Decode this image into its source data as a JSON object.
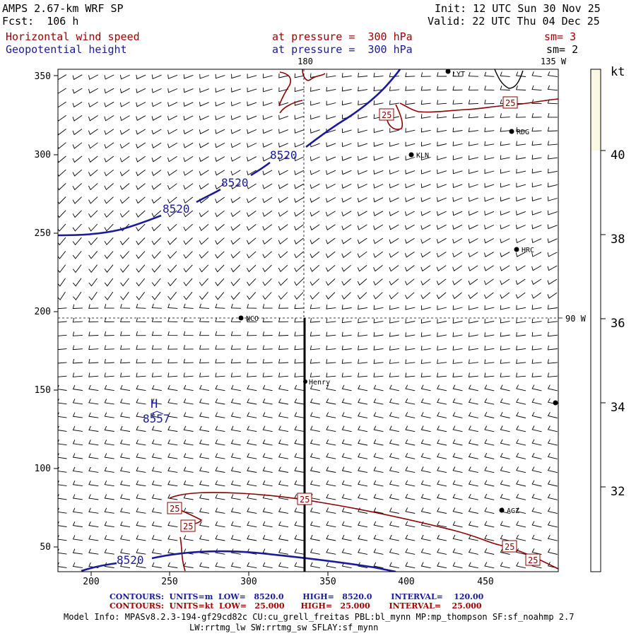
{
  "header": {
    "model_title": "AMPS 2.67-km WRF SP",
    "forecast": "Fcst:  106 h",
    "init": "Init: 12 UTC Sun 30 Nov 25",
    "valid": "Valid: 22 UTC Thu 04 Dec 25",
    "field1": "Horizontal wind speed",
    "field1_level": "at pressure =  300 hPa",
    "field1_sm": "sm= 3",
    "field2": "Geopotential height",
    "field2_level": "at pressure =  300 hPa",
    "field2_sm": "sm= 2"
  },
  "map": {
    "x_ticks": [
      "200",
      "250",
      "300",
      "350",
      "400",
      "450"
    ],
    "y_ticks": [
      "350",
      "300",
      "250",
      "200",
      "150",
      "100",
      "50"
    ],
    "meridian_180": "180",
    "meridian_135": "135 W",
    "meridian_90": "90 W",
    "stations": [
      {
        "name": "LYT"
      },
      {
        "name": "RDG"
      },
      {
        "name": "KLN"
      },
      {
        "name": "HRC"
      },
      {
        "name": "NCO"
      },
      {
        "name": "Henry"
      },
      {
        "name": "AGZ"
      }
    ],
    "high_marker": "H",
    "high_value": "8557",
    "height_contour_label": "8520",
    "wind_contour_label": "25",
    "colors": {
      "height_contour": "#1a1a9c",
      "coast": "#8b0000",
      "wind_contour": "#8b0000",
      "colorbar_fill": "#fbf8e4"
    }
  },
  "colorbar": {
    "unit": "kt",
    "labels": [
      "40",
      "38",
      "36",
      "34",
      "32"
    ]
  },
  "footer": {
    "contours1": "CONTOURS:  UNITS=m  LOW=   8520.0       HIGH=   8520.0       INTERVAL=    120.00",
    "contours2": "CONTOURS:  UNITS=kt  LOW=   25.000      HIGH=   25.000       INTERVAL=    25.000",
    "model_info1": "Model Info: MPASv8.2.3-194-gf29cd82c CU:cu_grell_freitas PBL:bl_mynn MP:mp_thompson SF:sf_noahmp 2.7",
    "model_info2": "LW:rrtmg_lw SW:rrtmg_sw SFLAY:sf_mynn"
  }
}
